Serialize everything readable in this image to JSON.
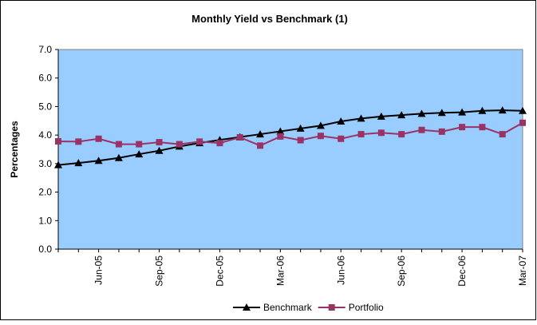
{
  "chart_data": {
    "type": "line",
    "title": "Monthly Yield vs Benchmark (1)",
    "y_label": "Percentages",
    "categories": [
      null,
      null,
      "Jun-05",
      null,
      null,
      "Sep-05",
      null,
      null,
      "Dec-05",
      null,
      null,
      "Mar-06",
      null,
      null,
      "Jun-06",
      null,
      null,
      "Sep-06",
      null,
      null,
      "Dec-06",
      null,
      null,
      "Mar-07"
    ],
    "series": [
      {
        "name": "Benchmark",
        "color": "#000000",
        "marker": "triangle",
        "values": [
          2.95,
          3.02,
          3.1,
          3.2,
          3.33,
          3.45,
          3.6,
          3.72,
          3.83,
          3.93,
          4.03,
          4.13,
          4.23,
          4.33,
          4.48,
          4.58,
          4.65,
          4.7,
          4.75,
          4.78,
          4.8,
          4.85,
          4.87,
          4.85
        ]
      },
      {
        "name": "Portfolio",
        "color": "#993366",
        "marker": "square",
        "values": [
          3.78,
          3.77,
          3.87,
          3.68,
          3.68,
          3.75,
          3.68,
          3.77,
          3.72,
          3.92,
          3.63,
          3.95,
          3.82,
          3.97,
          3.87,
          4.03,
          4.08,
          4.03,
          4.18,
          4.12,
          4.28,
          4.28,
          4.03,
          4.43
        ]
      }
    ],
    "ylim": [
      0,
      7
    ],
    "yticks": [
      {
        "value": 0,
        "label": "0.0"
      },
      {
        "value": 1,
        "label": "1.0"
      },
      {
        "value": 2,
        "label": "2.0"
      },
      {
        "value": 3,
        "label": "3.0"
      },
      {
        "value": 4,
        "label": "4.0"
      },
      {
        "value": 5,
        "label": "5.0"
      },
      {
        "value": 6,
        "label": "6.0"
      },
      {
        "value": 7,
        "label": "7.0"
      }
    ],
    "grid": false,
    "plot_background": "#99ccff",
    "legend": "bottom"
  }
}
